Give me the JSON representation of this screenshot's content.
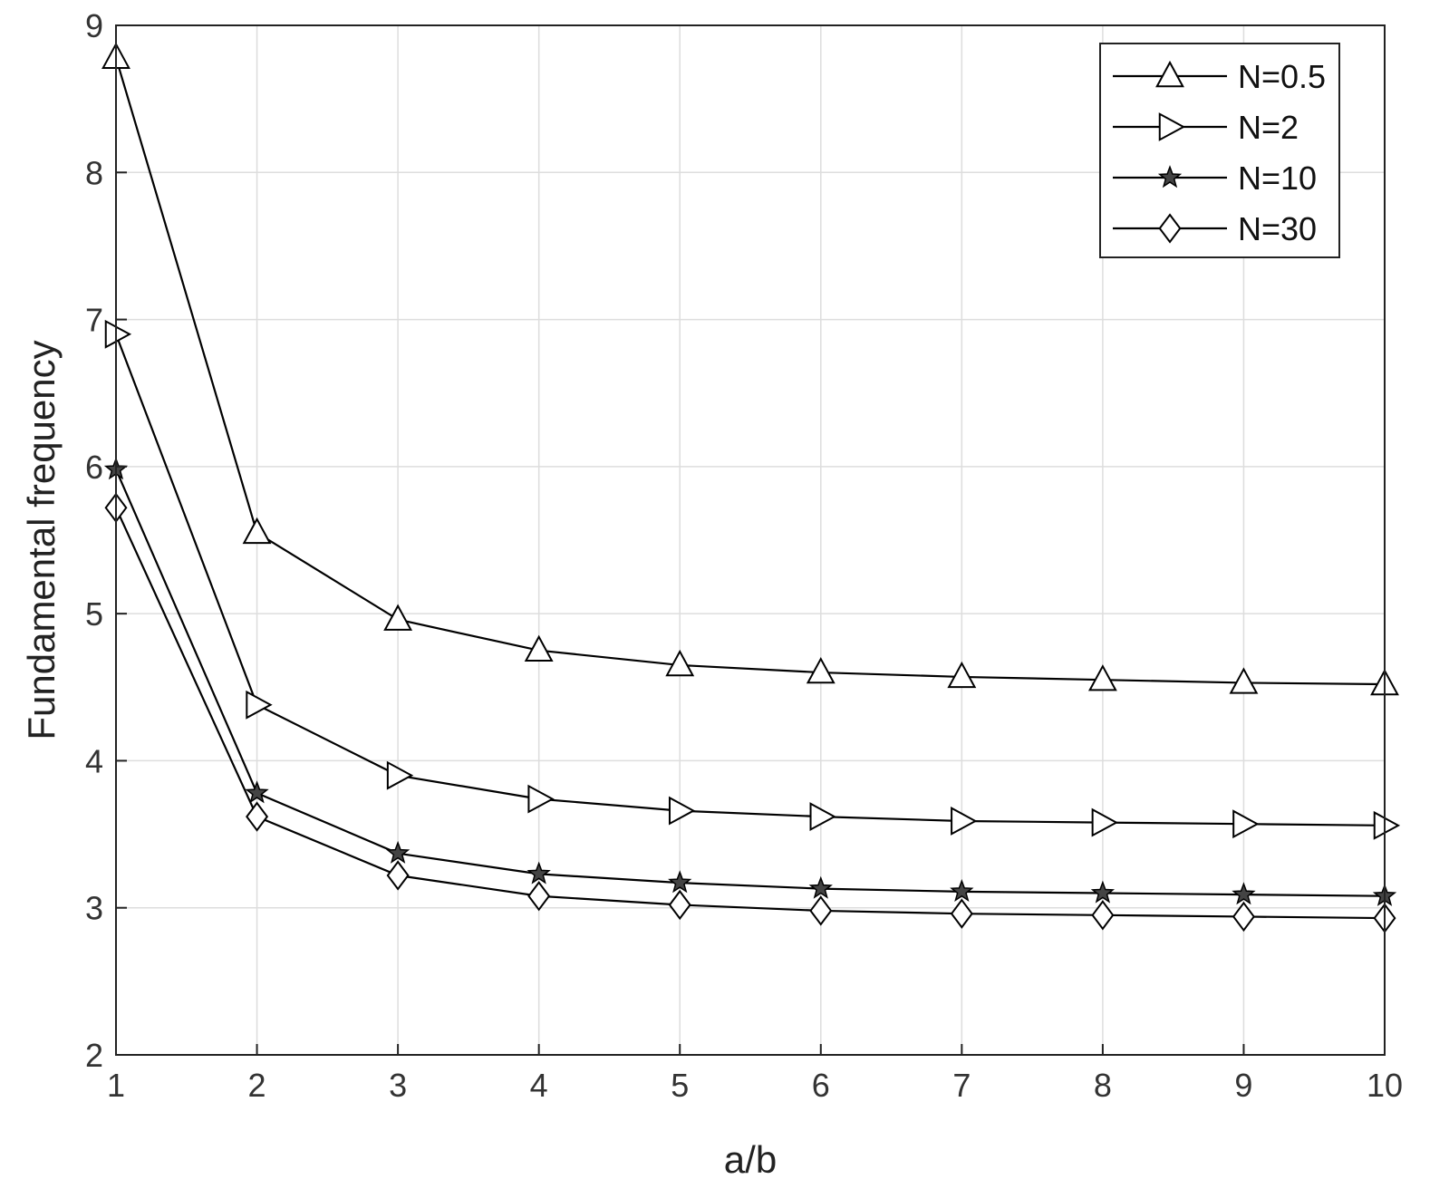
{
  "chart_data": {
    "type": "line",
    "xlabel": "a/b",
    "ylabel": "Fundamental frequency",
    "xlim": [
      1,
      10
    ],
    "ylim": [
      2,
      9
    ],
    "xticks": [
      1,
      2,
      3,
      4,
      5,
      6,
      7,
      8,
      9,
      10
    ],
    "yticks": [
      2,
      3,
      4,
      5,
      6,
      7,
      8,
      9
    ],
    "grid": true,
    "legend_position": "top-right",
    "x": [
      1,
      2,
      3,
      4,
      5,
      6,
      7,
      8,
      9,
      10
    ],
    "series": [
      {
        "name": "N=0.5",
        "marker": "triangle-up",
        "values": [
          8.78,
          5.55,
          4.96,
          4.75,
          4.65,
          4.6,
          4.57,
          4.55,
          4.53,
          4.52
        ]
      },
      {
        "name": "N=2",
        "marker": "triangle-right",
        "values": [
          6.9,
          4.38,
          3.9,
          3.74,
          3.66,
          3.62,
          3.59,
          3.58,
          3.57,
          3.56
        ]
      },
      {
        "name": "N=10",
        "marker": "star",
        "values": [
          5.98,
          3.78,
          3.37,
          3.23,
          3.17,
          3.13,
          3.11,
          3.1,
          3.09,
          3.08
        ]
      },
      {
        "name": "N=30",
        "marker": "diamond",
        "values": [
          5.72,
          3.62,
          3.22,
          3.08,
          3.02,
          2.98,
          2.96,
          2.95,
          2.94,
          2.93
        ]
      }
    ],
    "colors": {
      "line": "#000000",
      "grid": "#dddddd",
      "axis": "#222222"
    }
  }
}
